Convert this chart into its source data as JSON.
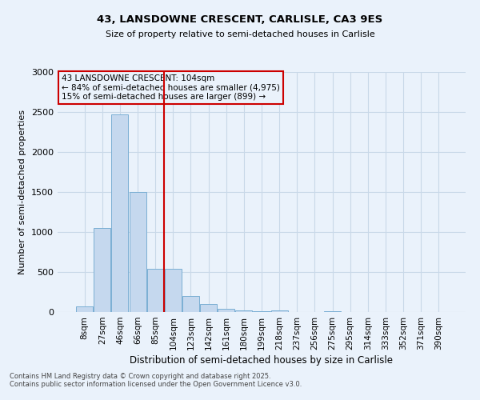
{
  "title_line1": "43, LANSDOWNE CRESCENT, CARLISLE, CA3 9ES",
  "title_line2": "Size of property relative to semi-detached houses in Carlisle",
  "xlabel": "Distribution of semi-detached houses by size in Carlisle",
  "ylabel": "Number of semi-detached properties",
  "annotation_title": "43 LANSDOWNE CRESCENT: 104sqm",
  "annotation_line2": "← 84% of semi-detached houses are smaller (4,975)",
  "annotation_line3": "15% of semi-detached houses are larger (899) →",
  "footer_line1": "Contains HM Land Registry data © Crown copyright and database right 2025.",
  "footer_line2": "Contains public sector information licensed under the Open Government Licence v3.0.",
  "categories": [
    "8sqm",
    "27sqm",
    "46sqm",
    "66sqm",
    "85sqm",
    "104sqm",
    "123sqm",
    "142sqm",
    "161sqm",
    "180sqm",
    "199sqm",
    "218sqm",
    "237sqm",
    "256sqm",
    "275sqm",
    "295sqm",
    "314sqm",
    "333sqm",
    "352sqm",
    "371sqm",
    "390sqm"
  ],
  "values": [
    75,
    1050,
    2470,
    1500,
    540,
    540,
    200,
    100,
    40,
    20,
    10,
    20,
    5,
    3,
    15,
    2,
    1,
    1,
    0,
    0,
    0
  ],
  "bar_color": "#c5d8ee",
  "bar_edge_color": "#7bafd4",
  "vline_index": 5,
  "vline_color": "#cc0000",
  "annotation_box_color": "#cc0000",
  "grid_color": "#c8d8e8",
  "background_color": "#eaf2fb",
  "ylim": [
    0,
    3000
  ],
  "yticks": [
    0,
    500,
    1000,
    1500,
    2000,
    2500,
    3000
  ]
}
